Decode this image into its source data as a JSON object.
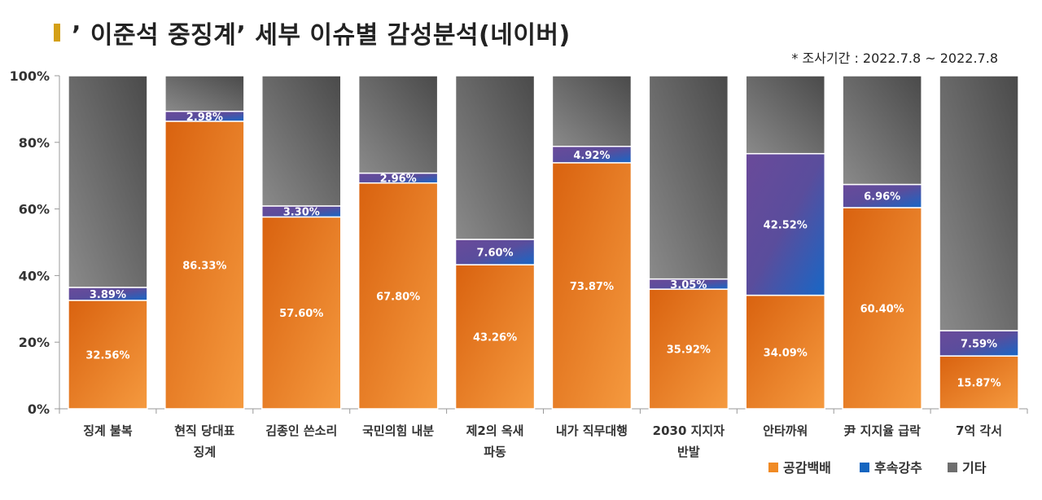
{
  "title": "’ 이준석 중징계’ 세부 이슈별 감성분석(네이버)",
  "period": "* 조사기간 : 2022.7.8 ~ 2022.7.8",
  "chart_data": {
    "type": "bar",
    "stacked": true,
    "title": "’ 이준석 중징계’ 세부 이슈별 감성분석(네이버)",
    "categories": [
      [
        "징계 불복"
      ],
      [
        "현직 당대표",
        "징계"
      ],
      [
        "김종인 쓴소리"
      ],
      [
        "국민의힘 내분"
      ],
      [
        "제2의 옥새",
        "파동"
      ],
      [
        "내가 직무대행"
      ],
      [
        "2030 지지자",
        "반발"
      ],
      [
        "안타까워"
      ],
      [
        "尹 지지율 급락"
      ],
      [
        "7억 각서"
      ]
    ],
    "series": [
      {
        "name": "공감백배",
        "color": "#f08a24",
        "values": [
          32.56,
          86.33,
          57.6,
          67.8,
          43.26,
          73.87,
          35.92,
          34.09,
          60.4,
          15.87
        ],
        "labels": [
          "32.56%",
          "86.33%",
          "57.60%",
          "67.80%",
          "43.26%",
          "73.87%",
          "35.92%",
          "34.09%",
          "60.40%",
          "15.87%"
        ]
      },
      {
        "name": "후속강추",
        "color": "#1565c0",
        "values": [
          3.89,
          2.98,
          3.3,
          2.96,
          7.6,
          4.92,
          3.05,
          42.52,
          6.96,
          7.59
        ],
        "labels": [
          "3.89%",
          "2.98%",
          "3.30%",
          "2.96%",
          "7.60%",
          "4.92%",
          "3.05%",
          "42.52%",
          "6.96%",
          "7.59%"
        ]
      },
      {
        "name": "기타",
        "color": "#6e6e6e",
        "values": [
          63.55,
          10.69,
          39.1,
          29.24,
          49.14,
          21.21,
          61.03,
          23.39,
          32.64,
          76.54
        ]
      }
    ],
    "yticks": [
      "0%",
      "20%",
      "40%",
      "60%",
      "80%",
      "100%"
    ],
    "ylim": [
      0,
      100
    ],
    "grid": false,
    "legend_position": "bottom-right"
  }
}
